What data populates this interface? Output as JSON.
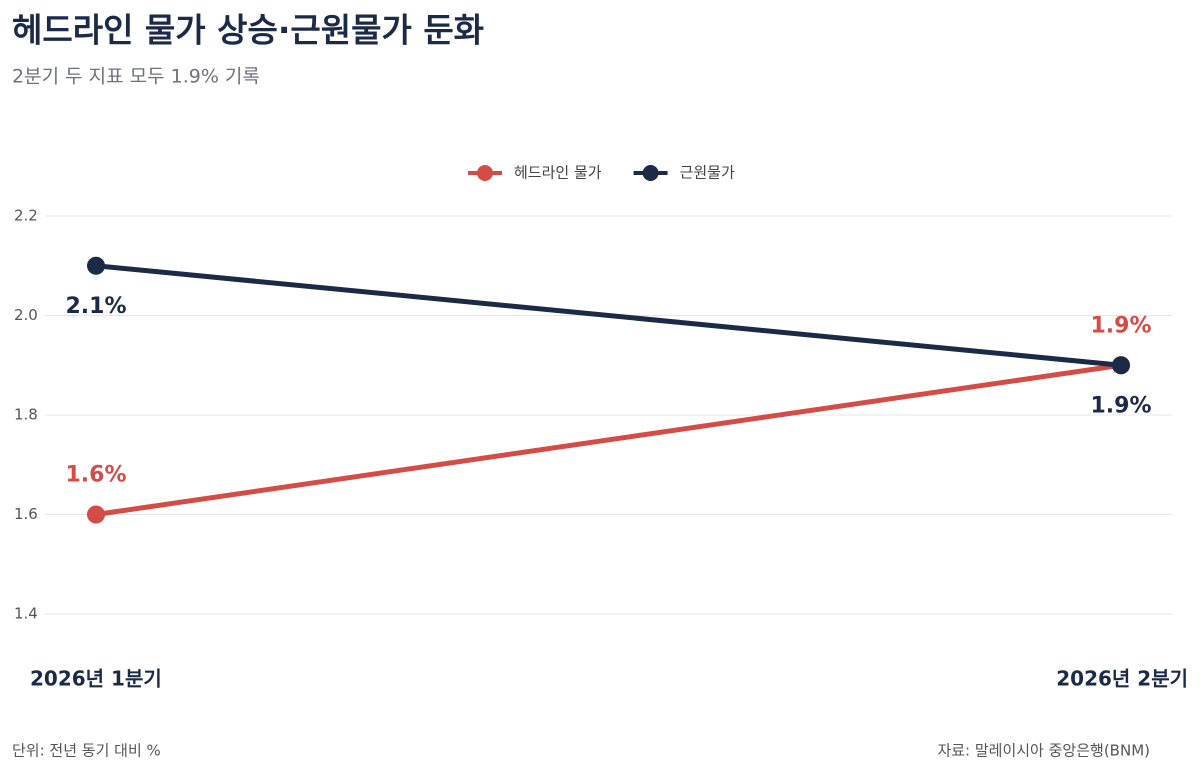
{
  "chart_data": {
    "type": "line",
    "title": "헤드라인 물가 상승·근원물가 둔화",
    "subtitle": "2분기 두 지표 모두 1.9% 기록",
    "categories": [
      "2026년 1분기",
      "2026년 2분기"
    ],
    "series": [
      {
        "name": "헤드라인 물가",
        "color": "#d44c45",
        "values": [
          1.6,
          1.9
        ],
        "value_labels": [
          "1.6%",
          "1.9%"
        ]
      },
      {
        "name": "근원물가",
        "color": "#1b2a47",
        "values": [
          2.1,
          1.9
        ],
        "value_labels": [
          "2.1%",
          "1.9%"
        ]
      }
    ],
    "ylim": [
      1.4,
      2.2
    ],
    "yticks": [
      1.4,
      1.6,
      1.8,
      {
        "value": 2,
        "label": "2.0"
      },
      2.2
    ],
    "grid": true,
    "legend": "top",
    "note": "단위: 전년 동기 대비 %",
    "source": "자료: 말레이시아 중앙은행(BNM)"
  }
}
